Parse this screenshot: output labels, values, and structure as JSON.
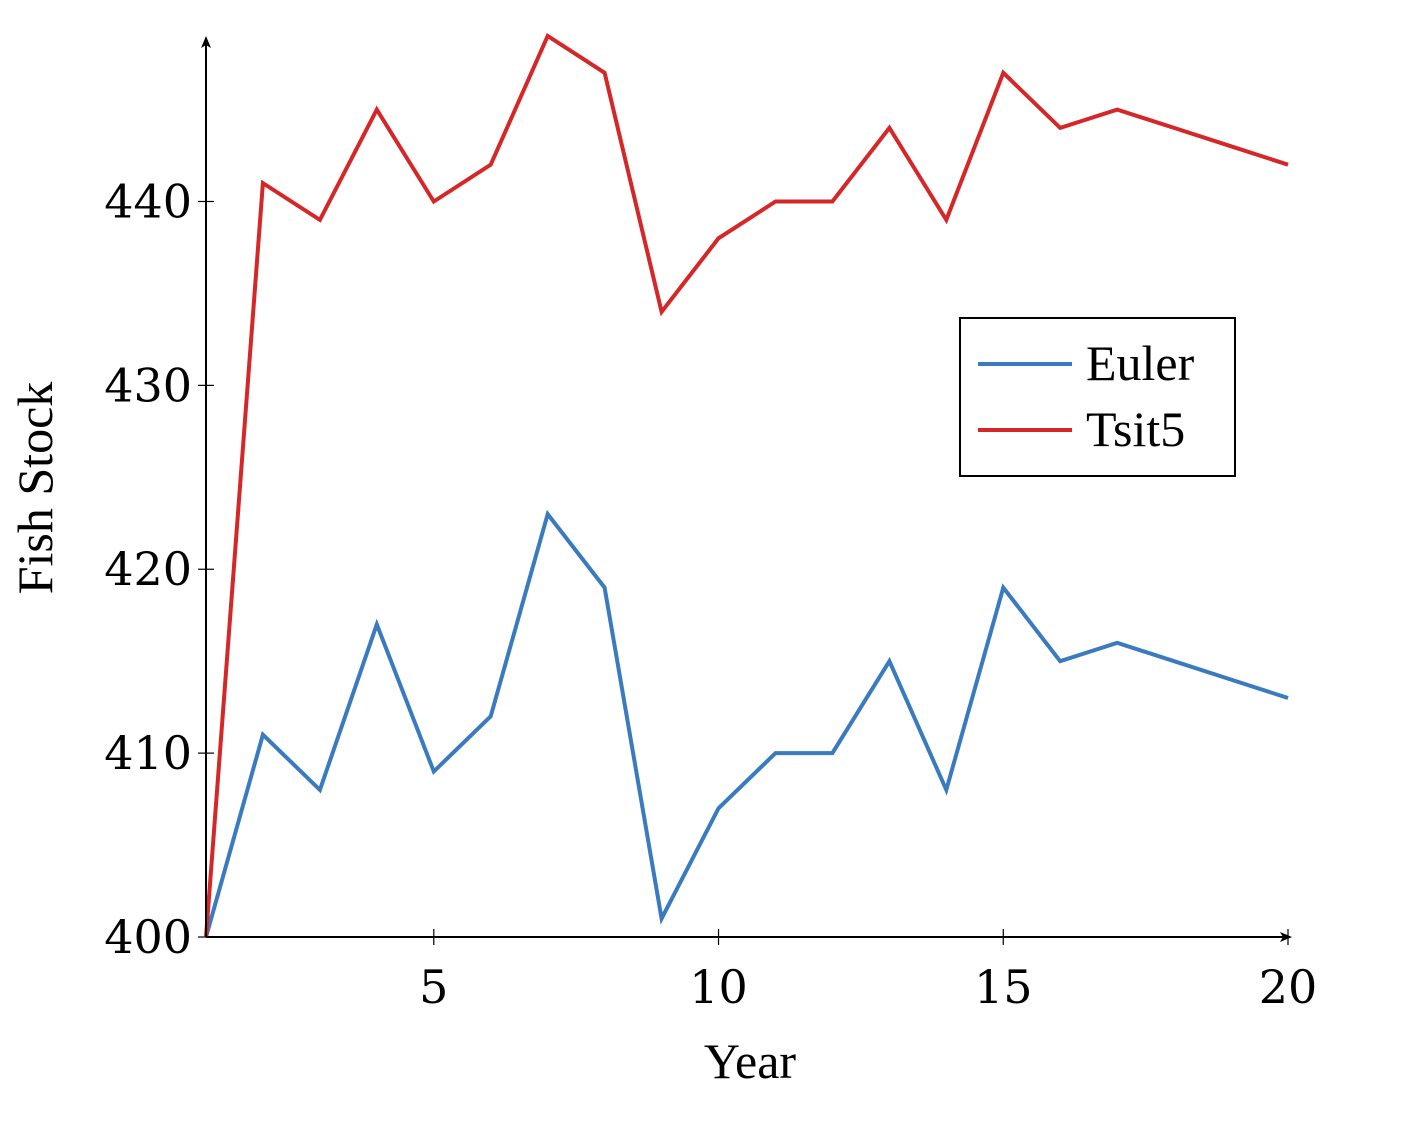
{
  "chart_data": {
    "type": "line",
    "title": "",
    "xlabel": "Year",
    "ylabel": "Fish Stock",
    "xlim": [
      1,
      20
    ],
    "ylim": [
      400,
      449
    ],
    "x_ticks": [
      5,
      10,
      15,
      20
    ],
    "y_ticks": [
      400,
      410,
      420,
      430,
      440
    ],
    "grid": false,
    "legend_position": "right",
    "x": [
      1,
      2,
      3,
      4,
      5,
      6,
      7,
      8,
      9,
      10,
      11,
      12,
      13,
      14,
      15,
      16,
      17,
      18,
      19,
      20
    ],
    "series": [
      {
        "name": "Euler",
        "color": "#3a7bbf",
        "values": [
          400,
          411,
          408,
          417,
          409,
          412,
          423,
          419,
          401,
          407,
          410,
          410,
          415,
          408,
          419,
          415,
          416,
          415,
          414,
          413
        ]
      },
      {
        "name": "Tsit5",
        "color": "#d62728",
        "values": [
          400,
          441,
          439,
          445,
          440,
          442,
          449,
          447,
          434,
          438,
          440,
          440,
          444,
          439,
          447,
          444,
          445,
          444,
          443,
          442
        ]
      }
    ]
  }
}
